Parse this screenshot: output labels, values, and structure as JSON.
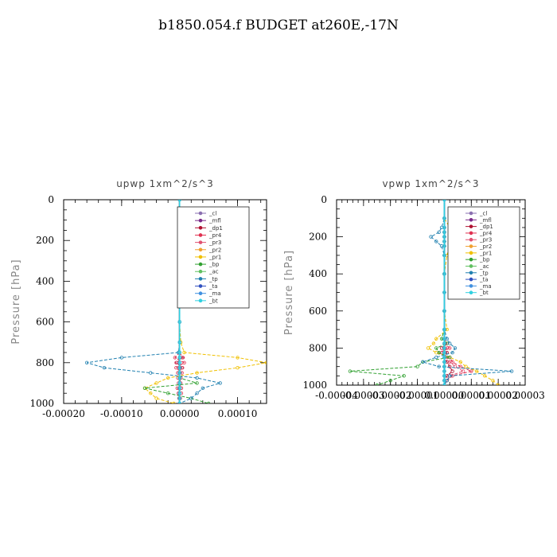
{
  "title": "b1850.054.f  BUDGET at260E,-17N",
  "chart_data": [
    {
      "type": "line",
      "title": "upwp   1xm^2/s^3",
      "ylabel": "Pressure [hPa]",
      "xlabel": "",
      "xlim": [
        -0.0002,
        0.00015
      ],
      "ylim": [
        1000,
        0
      ],
      "xticks": [
        "-0.00020",
        "-0.00010",
        "0.00000",
        "0.00010"
      ],
      "xtick_values": [
        -0.0002,
        -0.0001,
        0.0,
        0.0001
      ],
      "yticks": [
        "0",
        "200",
        "400",
        "600",
        "800",
        "1000"
      ],
      "ytick_values": [
        0,
        200,
        400,
        600,
        800,
        1000
      ],
      "legend_position": "top-right",
      "pressure": [
        0,
        100,
        200,
        300,
        400,
        500,
        600,
        700,
        750,
        775,
        800,
        825,
        850,
        875,
        900,
        925,
        950,
        975,
        1000
      ],
      "series": [
        {
          "name": "_cl",
          "color": "#8a6fb0",
          "values": [
            0,
            0,
            0,
            0,
            0,
            0,
            0,
            0,
            0,
            0,
            0,
            0,
            0,
            0,
            0,
            0,
            0,
            0,
            0
          ]
        },
        {
          "name": "_mfl",
          "color": "#7a2a8a",
          "values": [
            0,
            0,
            0,
            0,
            0,
            0,
            0,
            0,
            0,
            0,
            0,
            0,
            0,
            0,
            0,
            0,
            0,
            0,
            0
          ]
        },
        {
          "name": "_dp1",
          "color": "#b01030",
          "values": [
            0,
            0,
            0,
            0,
            0,
            0,
            0,
            0,
            0,
            5e-06,
            -5e-06,
            4e-06,
            -3e-06,
            2e-06,
            0,
            3e-06,
            -2e-06,
            1e-06,
            0
          ]
        },
        {
          "name": "_pr4",
          "color": "#e03050",
          "values": [
            0,
            0,
            0,
            0,
            0,
            0,
            0,
            0,
            0,
            -8e-06,
            8e-06,
            -6e-06,
            4e-06,
            -3e-06,
            2e-06,
            -4e-06,
            3e-06,
            -1e-06,
            0
          ]
        },
        {
          "name": "_pr3",
          "color": "#e05070",
          "values": [
            0,
            0,
            0,
            0,
            0,
            0,
            0,
            0,
            0,
            6e-06,
            -6e-06,
            5e-06,
            -3e-06,
            2e-06,
            -2e-06,
            3e-06,
            -2e-06,
            1e-06,
            0
          ]
        },
        {
          "name": "_pr2",
          "color": "#f0a030",
          "values": [
            0,
            0,
            0,
            0,
            0,
            0,
            0,
            0,
            0,
            0,
            0,
            0,
            0,
            0,
            0,
            0,
            0,
            0,
            0
          ]
        },
        {
          "name": "_pr1",
          "color": "#f0c000",
          "values": [
            0,
            0,
            0,
            0,
            0,
            0,
            0,
            2e-06,
            8e-06,
            0.0001,
            0.00015,
            0.0001,
            3e-05,
            -2e-05,
            -4e-05,
            -6e-05,
            -5e-05,
            -4e-05,
            -1e-05
          ]
        },
        {
          "name": "_bp",
          "color": "#30a030",
          "values": [
            0,
            0,
            0,
            0,
            0,
            0,
            0,
            0,
            0,
            0,
            0,
            0,
            0,
            0,
            3e-05,
            -6e-05,
            -2e-05,
            2e-05,
            5e-05
          ]
        },
        {
          "name": "_ac",
          "color": "#60c060",
          "values": [
            0,
            0,
            0,
            0,
            0,
            0,
            0,
            0,
            0,
            0,
            0,
            0,
            0,
            0,
            0,
            0,
            0,
            0,
            0
          ]
        },
        {
          "name": "_tp",
          "color": "#2080b0",
          "values": [
            0,
            0,
            0,
            0,
            0,
            0,
            0,
            0,
            -2e-06,
            -0.0001,
            -0.00016,
            -0.00013,
            -5e-05,
            3e-05,
            7e-05,
            4e-05,
            3e-05,
            2e-05,
            0
          ]
        },
        {
          "name": "_ta",
          "color": "#3050c0",
          "values": [
            0,
            0,
            0,
            0,
            0,
            0,
            0,
            0,
            0,
            0,
            0,
            0,
            0,
            0,
            0,
            0,
            0,
            0,
            0
          ]
        },
        {
          "name": "_ma",
          "color": "#4090e0",
          "values": [
            0,
            0,
            0,
            0,
            0,
            0,
            0,
            0,
            0,
            0,
            0,
            0,
            0,
            0,
            0,
            0,
            0,
            0,
            0
          ]
        },
        {
          "name": "_bt",
          "color": "#30d0e0",
          "values": [
            0,
            0,
            0,
            0,
            0,
            0,
            0,
            0,
            0,
            0,
            0,
            0,
            0,
            0,
            0,
            0,
            0,
            0,
            0
          ]
        }
      ]
    },
    {
      "type": "line",
      "title": "vpwp   1xm^2/s^3",
      "ylabel": "Pressure [hPa]",
      "xlabel": "",
      "xlim": [
        -4e-05,
        3e-05
      ],
      "ylim": [
        1000,
        0
      ],
      "xticks": [
        "-0.00004",
        "-0.00003",
        "-0.00002",
        "-0.00001",
        "0.00000",
        "0.00001",
        "0.00002",
        "0.00003"
      ],
      "xtick_values": [
        -4e-05,
        -3e-05,
        -2e-05,
        -1e-05,
        0.0,
        1e-05,
        2e-05,
        3e-05
      ],
      "yticks": [
        "0",
        "200",
        "400",
        "600",
        "800",
        "1000"
      ],
      "ytick_values": [
        0,
        200,
        400,
        600,
        800,
        1000
      ],
      "legend_position": "top-right",
      "pressure": [
        0,
        100,
        150,
        175,
        200,
        225,
        250,
        300,
        400,
        500,
        600,
        700,
        750,
        775,
        800,
        825,
        850,
        875,
        900,
        925,
        950,
        975,
        1000
      ],
      "series": [
        {
          "name": "_cl",
          "color": "#8a6fb0",
          "values": [
            0,
            0,
            0,
            0,
            0,
            0,
            0,
            0,
            0,
            0,
            0,
            0,
            0,
            0,
            0,
            0,
            0,
            0,
            0,
            0,
            0,
            0,
            0
          ]
        },
        {
          "name": "_mfl",
          "color": "#7a2a8a",
          "values": [
            0,
            0,
            0,
            0,
            0,
            0,
            0,
            0,
            0,
            0,
            0,
            0,
            0,
            0,
            0,
            0,
            0,
            0,
            0,
            0,
            0,
            0,
            0
          ]
        },
        {
          "name": "_dp1",
          "color": "#b01030",
          "values": [
            0,
            0,
            0,
            0,
            0,
            0,
            0,
            0,
            0,
            0,
            0,
            0,
            0,
            1e-06,
            -1e-06,
            1e-06,
            0,
            1e-06,
            2e-06,
            3e-06,
            1e-06,
            0,
            0
          ]
        },
        {
          "name": "_pr4",
          "color": "#e03050",
          "values": [
            0,
            0,
            0,
            0,
            0,
            0,
            0,
            0,
            0,
            0,
            0,
            0,
            0,
            0,
            2e-06,
            -2e-06,
            2e-06,
            3e-06,
            6e-06,
            1e-05,
            3e-06,
            1e-06,
            0
          ]
        },
        {
          "name": "_pr3",
          "color": "#e05070",
          "values": [
            0,
            0,
            0,
            0,
            0,
            0,
            0,
            0,
            0,
            0,
            0,
            0,
            0,
            0,
            1e-06,
            -1e-06,
            1e-06,
            2e-06,
            4e-06,
            7e-06,
            2e-06,
            1e-06,
            0
          ]
        },
        {
          "name": "_pr2",
          "color": "#f0a030",
          "values": [
            0,
            0,
            0,
            0,
            0,
            0,
            0,
            0,
            0,
            0,
            0,
            0,
            0,
            0,
            0,
            0,
            0,
            0,
            0,
            0,
            0,
            0,
            0
          ]
        },
        {
          "name": "_pr1",
          "color": "#f0c000",
          "values": [
            0,
            0,
            2e-06,
            3e-06,
            4e-06,
            3e-06,
            2e-06,
            1e-06,
            0,
            0,
            0,
            1e-06,
            -3e-06,
            -4e-06,
            -6e-06,
            -3e-06,
            2e-06,
            6e-06,
            8e-06,
            1.2e-05,
            1.5e-05,
            1.8e-05,
            2e-05
          ]
        },
        {
          "name": "_bp",
          "color": "#30a030",
          "values": [
            0,
            0,
            0,
            0,
            0,
            0,
            0,
            0,
            0,
            0,
            0,
            0,
            -1e-06,
            1e-06,
            -3e-06,
            -2e-06,
            2e-06,
            -8e-06,
            -1e-05,
            -3.5e-05,
            -1.5e-05,
            -2e-05,
            -2.5e-05
          ]
        },
        {
          "name": "_ac",
          "color": "#60c060",
          "values": [
            0,
            0,
            0,
            0,
            0,
            0,
            0,
            0,
            0,
            0,
            0,
            0,
            0,
            0,
            0,
            0,
            0,
            0,
            0,
            0,
            0,
            0,
            0
          ]
        },
        {
          "name": "_tp",
          "color": "#2080b0",
          "values": [
            0,
            0,
            -1e-06,
            -2e-06,
            -5e-06,
            -3e-06,
            -1e-06,
            0,
            0,
            0,
            0,
            0,
            1e-06,
            2e-06,
            4e-06,
            3e-06,
            -3e-06,
            -8e-06,
            -2e-06,
            2.5e-05,
            2e-06,
            1e-06,
            0
          ]
        },
        {
          "name": "_ta",
          "color": "#3050c0",
          "values": [
            0,
            0,
            0,
            0,
            0,
            0,
            0,
            0,
            0,
            0,
            0,
            0,
            0,
            0,
            0,
            0,
            0,
            0,
            0,
            0,
            0,
            0,
            0
          ]
        },
        {
          "name": "_ma",
          "color": "#4090e0",
          "values": [
            0,
            0,
            0,
            0,
            0,
            0,
            0,
            0,
            0,
            0,
            0,
            0,
            0,
            0,
            0,
            0,
            0,
            0,
            0,
            0,
            0,
            0,
            0
          ]
        },
        {
          "name": "_bt",
          "color": "#30d0e0",
          "values": [
            0,
            0,
            0,
            0,
            0,
            0,
            0,
            0,
            0,
            0,
            0,
            0,
            0,
            0,
            0,
            0,
            0,
            0,
            0,
            0,
            0,
            0,
            0
          ]
        }
      ]
    }
  ]
}
